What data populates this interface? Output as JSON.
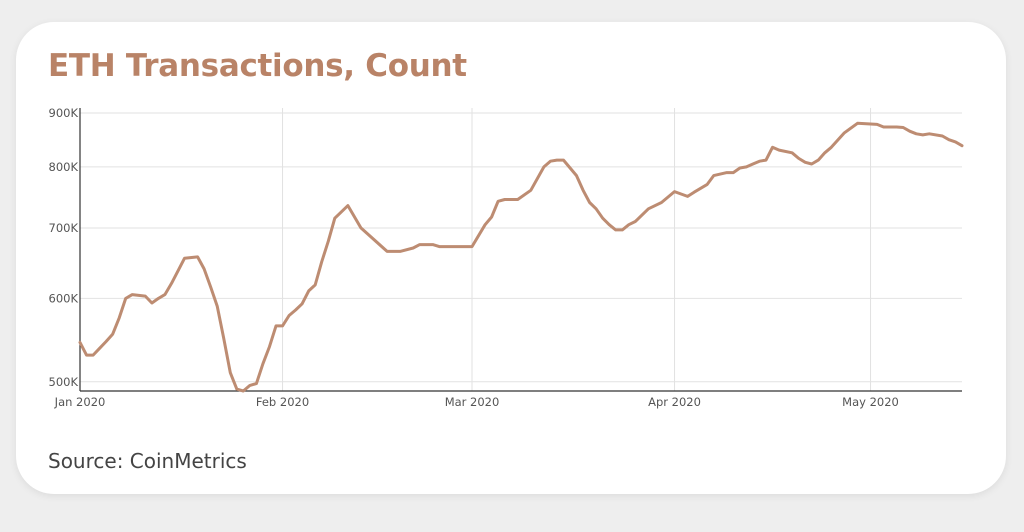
{
  "card": {
    "title": "ETH Transactions, Count",
    "source": "Source: CoinMetrics"
  },
  "colors": {
    "line": "#bd8c72",
    "title": "#b98367",
    "grid": "#e2e2e2",
    "axis": "#333333"
  },
  "chart_data": {
    "type": "line",
    "title": "ETH Transactions, Count",
    "xlabel": "",
    "ylabel": "",
    "y_scale": "log",
    "ylim": [
      490000,
      910000
    ],
    "xlim": [
      "2020-01-01",
      "2020-05-15"
    ],
    "y_ticks": [
      {
        "value": 500000,
        "label": "500K"
      },
      {
        "value": 600000,
        "label": "600K"
      },
      {
        "value": 700000,
        "label": "700K"
      },
      {
        "value": 800000,
        "label": "800K"
      },
      {
        "value": 900000,
        "label": "900K"
      }
    ],
    "x_ticks": [
      {
        "value": "2020-01-01",
        "label": "Jan 2020"
      },
      {
        "value": "2020-02-01",
        "label": "Feb 2020"
      },
      {
        "value": "2020-03-01",
        "label": "Mar 2020"
      },
      {
        "value": "2020-04-01",
        "label": "Apr 2020"
      },
      {
        "value": "2020-05-01",
        "label": "May 2020"
      }
    ],
    "grid": true,
    "legend": "none",
    "series": [
      {
        "x": [
          "2020-01-01",
          "2020-01-02",
          "2020-01-03",
          "2020-01-04",
          "2020-01-05",
          "2020-01-06",
          "2020-01-07",
          "2020-01-08",
          "2020-01-09",
          "2020-01-10",
          "2020-01-11",
          "2020-01-12",
          "2020-01-13",
          "2020-01-14",
          "2020-01-15",
          "2020-01-17",
          "2020-01-19",
          "2020-01-20",
          "2020-01-21",
          "2020-01-22",
          "2020-01-23",
          "2020-01-24",
          "2020-01-25",
          "2020-01-26",
          "2020-01-27",
          "2020-01-28",
          "2020-01-29",
          "2020-01-30",
          "2020-01-31",
          "2020-02-01",
          "2020-02-02",
          "2020-02-03",
          "2020-02-04",
          "2020-02-05",
          "2020-02-06",
          "2020-02-07",
          "2020-02-08",
          "2020-02-09",
          "2020-02-10",
          "2020-02-11",
          "2020-02-13",
          "2020-02-17",
          "2020-02-19",
          "2020-02-21",
          "2020-02-22",
          "2020-02-23",
          "2020-02-24",
          "2020-02-25",
          "2020-03-01",
          "2020-03-03",
          "2020-03-04",
          "2020-03-05",
          "2020-03-06",
          "2020-03-07",
          "2020-03-08",
          "2020-03-10",
          "2020-03-12",
          "2020-03-13",
          "2020-03-14",
          "2020-03-15",
          "2020-03-17",
          "2020-03-18",
          "2020-03-19",
          "2020-03-20",
          "2020-03-21",
          "2020-03-22",
          "2020-03-23",
          "2020-03-24",
          "2020-03-25",
          "2020-03-26",
          "2020-03-28",
          "2020-03-30",
          "2020-04-01",
          "2020-04-03",
          "2020-04-04",
          "2020-04-06",
          "2020-04-07",
          "2020-04-09",
          "2020-04-10",
          "2020-04-11",
          "2020-04-12",
          "2020-04-13",
          "2020-04-14",
          "2020-04-15",
          "2020-04-16",
          "2020-04-17",
          "2020-04-19",
          "2020-04-20",
          "2020-04-21",
          "2020-04-22",
          "2020-04-23",
          "2020-04-24",
          "2020-04-25",
          "2020-04-27",
          "2020-04-29",
          "2020-05-02",
          "2020-05-03",
          "2020-05-05",
          "2020-05-06",
          "2020-05-07",
          "2020-05-08",
          "2020-05-09",
          "2020-05-10",
          "2020-05-12",
          "2020-05-13",
          "2020-05-14",
          "2020-05-15"
        ],
        "values": [
          545000,
          530000,
          530000,
          538000,
          546000,
          555000,
          575000,
          600000,
          605000,
          604000,
          603000,
          594000,
          600000,
          605000,
          620000,
          655000,
          657000,
          640000,
          615000,
          590000,
          550000,
          510000,
          492000,
          490000,
          496000,
          498000,
          520000,
          540000,
          565000,
          565000,
          578000,
          585000,
          593000,
          610000,
          618000,
          650000,
          680000,
          715000,
          725000,
          735000,
          700000,
          665000,
          665000,
          670000,
          675000,
          675000,
          675000,
          672000,
          672000,
          705000,
          717000,
          742000,
          745000,
          745000,
          745000,
          760000,
          800000,
          810000,
          812000,
          812000,
          785000,
          760000,
          740000,
          730000,
          715000,
          705000,
          697000,
          697000,
          705000,
          710000,
          730000,
          740000,
          758000,
          750000,
          757000,
          770000,
          785000,
          790000,
          790000,
          798000,
          800000,
          805000,
          810000,
          812000,
          835000,
          830000,
          825000,
          815000,
          808000,
          805000,
          812000,
          825000,
          835000,
          862000,
          880000,
          878000,
          873000,
          873000,
          872000,
          865000,
          860000,
          858000,
          860000,
          856000,
          849000,
          845000,
          838000
        ]
      }
    ]
  }
}
